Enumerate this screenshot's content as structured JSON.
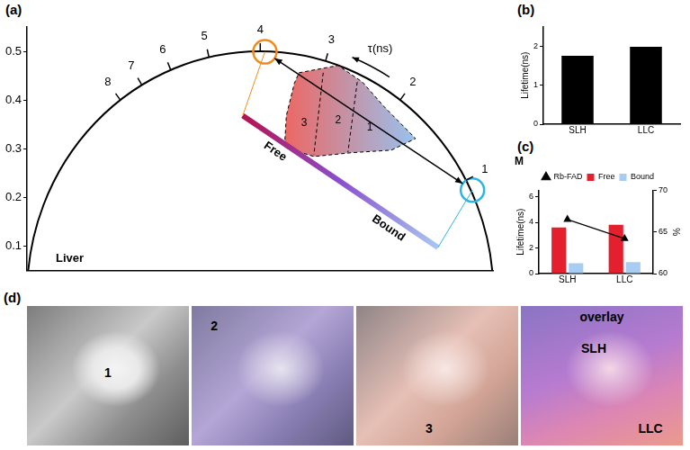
{
  "chart_data": [
    {
      "panel": "(a)",
      "type": "scatter",
      "annotation": "Liver",
      "xlim": [
        0,
        1
      ],
      "ylim": [
        0.05,
        0.55
      ],
      "yticks": [
        0.1,
        0.2,
        0.3,
        0.4,
        0.5
      ],
      "tick_labels": "y",
      "grid": false,
      "lifetime_axis": {
        "label": "τ(ns)",
        "ticks": [
          {
            "value": 1,
            "x": 0.941,
            "y": 0.235
          },
          {
            "value": 2,
            "x": 0.8,
            "y": 0.4
          },
          {
            "value": 3,
            "x": 0.64,
            "y": 0.48
          },
          {
            "value": 4,
            "x": 0.5,
            "y": 0.5
          },
          {
            "value": 5,
            "x": 0.39,
            "y": 0.488
          },
          {
            "value": 6,
            "x": 0.308,
            "y": 0.462
          },
          {
            "value": 7,
            "x": 0.246,
            "y": 0.431
          },
          {
            "value": 8,
            "x": 0.2,
            "y": 0.4
          }
        ]
      },
      "series": [
        {
          "color": "#f08c1e",
          "marker": "circle",
          "x": [
            0.51
          ],
          "values": [
            0.499
          ]
        },
        {
          "color": "#29b6e6",
          "marker": "circle",
          "x": [
            0.955
          ],
          "values": [
            0.215
          ]
        }
      ],
      "cloud": {
        "colors": [
          "#e8413c",
          "#7eb3ec"
        ],
        "outline": [
          [
            0.583,
            0.456
          ],
          [
            0.667,
            0.471
          ],
          [
            0.719,
            0.437
          ],
          [
            0.765,
            0.387
          ],
          [
            0.833,
            0.321
          ],
          [
            0.781,
            0.297
          ],
          [
            0.698,
            0.292
          ],
          [
            0.615,
            0.284
          ],
          [
            0.552,
            0.303
          ],
          [
            0.556,
            0.368
          ],
          [
            0.573,
            0.434
          ]
        ],
        "boundaries": [
          [
            [
              0.635,
              0.456
            ],
            [
              0.615,
              0.288
            ]
          ],
          [
            [
              0.708,
              0.437
            ],
            [
              0.688,
              0.293
            ]
          ]
        ],
        "regions": [
          {
            "label": "3",
            "x": 0.594,
            "y": 0.353
          },
          {
            "label": "2",
            "x": 0.667,
            "y": 0.359
          },
          {
            "label": "1",
            "x": 0.735,
            "y": 0.344
          }
        ]
      },
      "free_bound": {
        "labels": [
          "Free",
          "Bound"
        ],
        "colors": [
          "#b5124f",
          "#8a4fcf",
          "#a9c8f0"
        ],
        "start": [
          0.4625,
          0.368
        ],
        "end": [
          0.881,
          0.097
        ]
      }
    },
    {
      "panel": "(b)",
      "type": "bar",
      "categories": [
        "SLH",
        "LLC"
      ],
      "values": [
        1.75,
        1.98
      ],
      "color": "#000000",
      "y_label": "Lifetime(ns)",
      "ylim": [
        0,
        2.5
      ],
      "yticks": [
        0,
        1,
        2
      ],
      "grid": false
    },
    {
      "panel": "(c)",
      "type": "bar",
      "title": "M",
      "categories": [
        "SLH",
        "LLC"
      ],
      "y_label": "Lifetime(ns)",
      "y2_label": "%",
      "ylim": [
        0,
        6.5
      ],
      "yticks": [
        0,
        2,
        4,
        6
      ],
      "y2lim": [
        60,
        70
      ],
      "y2ticks": [
        60,
        65,
        70
      ],
      "legend": "top",
      "grid": false,
      "series": [
        {
          "name": "Free",
          "color": "#e5202e",
          "values": [
            3.6,
            3.8
          ]
        },
        {
          "name": "Bound",
          "color": "#a8ccf2",
          "values": [
            0.8,
            0.9
          ]
        },
        {
          "name": "Rb-FAD",
          "type": "line",
          "axis": "y2",
          "color": "#000000",
          "marker": "triangle",
          "values": [
            66.5,
            64.2
          ]
        }
      ]
    }
  ],
  "images": {
    "panel": "(d)",
    "tiles": [
      {
        "labels": [
          "1"
        ]
      },
      {
        "labels": [
          "2"
        ]
      },
      {
        "labels": [
          "3"
        ]
      },
      {
        "labels": [
          "overlay",
          "SLH",
          "LLC"
        ]
      }
    ]
  }
}
